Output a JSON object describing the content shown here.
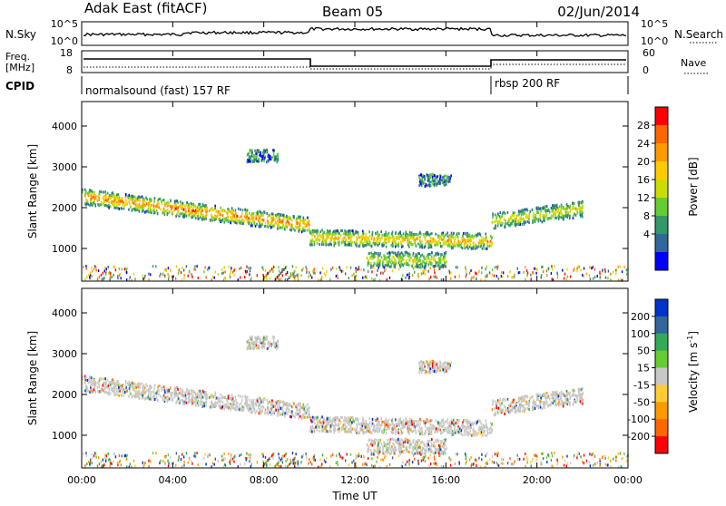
{
  "header": {
    "station": "Adak East (fitACF)",
    "beam": "Beam 05",
    "date": "02/Jun/2014"
  },
  "sky_panel": {
    "left_label": "N.Sky",
    "left_ticks": [
      "10^5",
      "10^0"
    ],
    "right_label": "N.Search",
    "right_ticks": [
      "10^5",
      "10^0"
    ]
  },
  "freq_panel": {
    "left_label_1": "Freq.",
    "left_label_2": "[MHz]",
    "left_ticks": [
      "18",
      "8"
    ],
    "right_label": "Nave",
    "right_ticks": [
      "60",
      "0"
    ]
  },
  "cpid_panel": {
    "label": "CPID",
    "modes": [
      "normalsound (fast) 157 RF",
      "rbsp 200 RF"
    ]
  },
  "power_panel": {
    "ylabel": "Slant Range [km]",
    "yticks": [
      "4000",
      "3000",
      "2000",
      "1000"
    ],
    "colorbar_label": "Power [dB]",
    "colorbar_ticks": [
      "28",
      "24",
      "20",
      "16",
      "12",
      "8",
      "4"
    ],
    "colorbar_colors": [
      "#ff0000",
      "#ff6600",
      "#ff9900",
      "#ffcc00",
      "#ccdd00",
      "#66cc33",
      "#339966",
      "#336699",
      "#0000ff"
    ]
  },
  "velocity_panel": {
    "ylabel": "Slant Range [km]",
    "yticks": [
      "4000",
      "3000",
      "2000",
      "1000"
    ],
    "colorbar_label": "Velocity [m s",
    "colorbar_sup": "-1",
    "colorbar_ticks": [
      "200",
      "100",
      "50",
      "15",
      "-15",
      "-50",
      "-100",
      "-200"
    ],
    "colorbar_colors": [
      "#0033cc",
      "#336699",
      "#33aa55",
      "#66cc33",
      "#c8c8c8",
      "#ffcc33",
      "#ff9900",
      "#ff6600",
      "#ff0000"
    ]
  },
  "xaxis": {
    "label": "Time UT",
    "ticks": [
      "00:00",
      "04:00",
      "08:00",
      "12:00",
      "16:00",
      "20:00",
      "00:00"
    ]
  },
  "chart_data": [
    {
      "type": "heatmap",
      "title": "Power",
      "xlabel": "Time UT",
      "ylabel": "Slant Range [km]",
      "ylim": [
        200,
        4600
      ],
      "x_range_hours": [
        0,
        24
      ],
      "color_scale": "Power [dB]",
      "color_range": [
        0,
        30
      ],
      "features": [
        {
          "start_h": 0.0,
          "end_h": 10.0,
          "range_km_start": 2300,
          "range_km_end": 1600,
          "power_db": 22
        },
        {
          "start_h": 10.0,
          "end_h": 18.0,
          "range_km_start": 1300,
          "range_km_end": 1200,
          "power_db": 18
        },
        {
          "start_h": 12.5,
          "end_h": 16.0,
          "range_km_start": 750,
          "range_km_end": 750,
          "power_db": 12
        },
        {
          "start_h": 18.0,
          "end_h": 22.0,
          "range_km_start": 1700,
          "range_km_end": 2000,
          "power_db": 14
        }
      ]
    },
    {
      "type": "heatmap",
      "title": "Velocity",
      "xlabel": "Time UT",
      "ylabel": "Slant Range [km]",
      "ylim": [
        200,
        4600
      ],
      "x_range_hours": [
        0,
        24
      ],
      "color_scale": "Velocity [m s-1]",
      "color_range": [
        -200,
        200
      ]
    }
  ]
}
